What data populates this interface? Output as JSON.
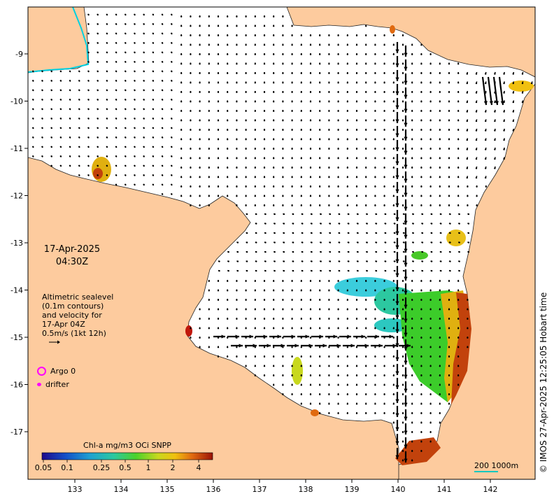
{
  "map": {
    "date_label": "17-Apr-2025",
    "time_label": "04:30Z",
    "velocity_caption": [
      "Altimetric sealevel",
      "(0.1m contours)",
      "and velocity for",
      "17-Apr 04Z",
      "0.5m/s (1kt 12h)"
    ],
    "lon_ticks": [
      "133",
      "134",
      "135",
      "136",
      "137",
      "138",
      "139",
      "140",
      "141",
      "142"
    ],
    "lat_ticks": [
      "-9",
      "-10",
      "-11",
      "-12",
      "-13",
      "-14",
      "-15",
      "-16",
      "-17"
    ],
    "legend": {
      "argo_label": "Argo 0",
      "drifter_label": "drifter"
    },
    "colorbar": {
      "title": "Chl-a mg/m3 OCi SNPP",
      "tick_labels": [
        "0.05",
        "0.1",
        "0.25",
        "0.5",
        "1",
        "2",
        "4"
      ]
    },
    "scale_bar_label": "200  1000m",
    "copyright": "© IMOS 27-Apr-2025 12:25:05 Hobart time",
    "colors": {
      "land": "#fdcb9e",
      "ocean": "#ffffff",
      "marker": "#ff00ff",
      "border_line": "#00d0e0"
    }
  }
}
